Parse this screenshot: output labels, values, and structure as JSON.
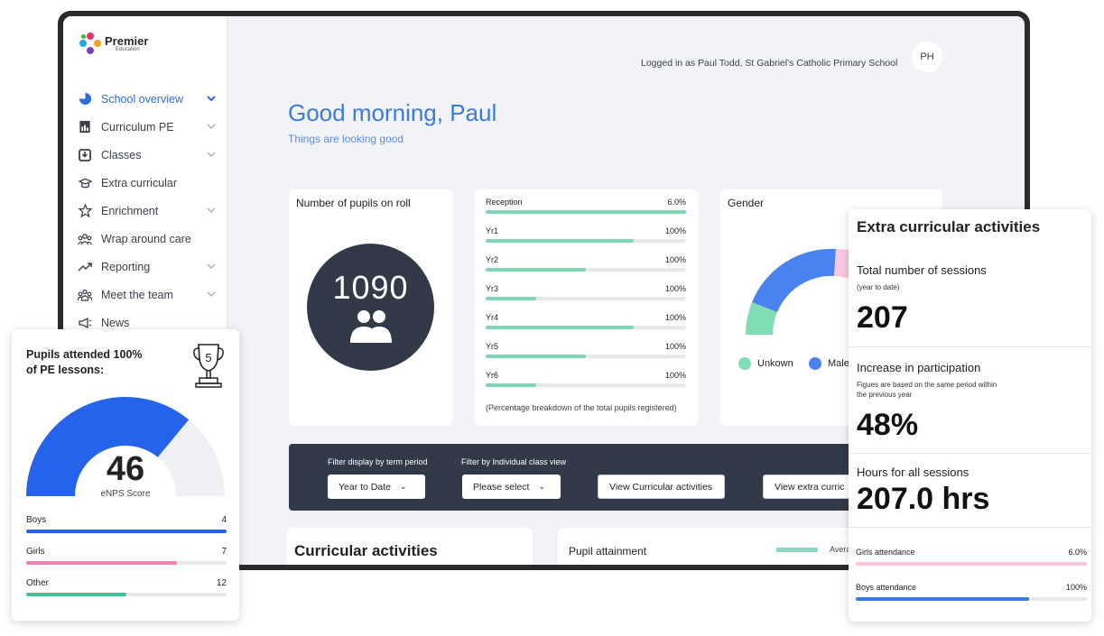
{
  "brand": {
    "name": "Premier",
    "sub": "Education"
  },
  "sidebar": {
    "items": [
      {
        "label": "School overview",
        "icon": "pie-chart-icon",
        "active": true,
        "chevron": true
      },
      {
        "label": "Curriculum PE",
        "icon": "document-chart-icon",
        "chevron": true
      },
      {
        "label": "Classes",
        "icon": "download-box-icon",
        "chevron": true
      },
      {
        "label": "Extra curricular",
        "icon": "graduation-cap-icon",
        "chevron": false
      },
      {
        "label": "Enrichment",
        "icon": "star-icon",
        "chevron": true
      },
      {
        "label": "Wrap around care",
        "icon": "people-group-icon",
        "chevron": false
      },
      {
        "label": "Reporting",
        "icon": "trend-up-icon",
        "chevron": true
      },
      {
        "label": "Meet the team",
        "icon": "team-icon",
        "chevron": true
      },
      {
        "label": "News",
        "icon": "megaphone-icon",
        "chevron": false
      }
    ]
  },
  "header": {
    "login_text": "Logged in as Paul Todd, St Gabriel's Catholic Primary School",
    "avatar_initials": "PH",
    "greeting": "Good morning, Paul",
    "subgreeting": "Things are looking good"
  },
  "roll": {
    "title": "Number of pupils on roll",
    "count": "1090"
  },
  "years": {
    "rows": [
      {
        "label": "Reception",
        "value": "6.0%",
        "fill": 1.0
      },
      {
        "label": "Yr1",
        "value": "100%",
        "fill": 0.74
      },
      {
        "label": "Yr2",
        "value": "100%",
        "fill": 0.5
      },
      {
        "label": "Yr3",
        "value": "100%",
        "fill": 0.25
      },
      {
        "label": "Yr4",
        "value": "100%",
        "fill": 0.74
      },
      {
        "label": "Yr5",
        "value": "100%",
        "fill": 0.5
      },
      {
        "label": "Yr6",
        "value": "100%",
        "fill": 0.25
      }
    ],
    "note": "(Percentage breakdown of the total pupils registered)"
  },
  "gender": {
    "title": "Gender",
    "legend": [
      {
        "label": "Unkown",
        "color": "#7fdcb5"
      },
      {
        "label": "Male",
        "color": "#4a82f0"
      }
    ]
  },
  "filters": {
    "term_label": "Filter display by term period",
    "term_value": "Year to Date",
    "class_label": "Filter by Individual class view",
    "class_value": "Please select",
    "btn_curricular": "View Curricular activities",
    "btn_extra": "View extra curric"
  },
  "curricular": {
    "title": "Curricular activities"
  },
  "attainment": {
    "title": "Pupil attainment",
    "legend": "Avera"
  },
  "pe": {
    "title_line1": "Pupils attended 100%",
    "title_line2": "of PE lessons:",
    "trophy_number": "5",
    "score": "46",
    "score_label": "eNPS Score",
    "gauge_fill": 0.8,
    "rows": [
      {
        "label": "Boys",
        "value": "4",
        "fill": 1.0,
        "color": "#2563eb"
      },
      {
        "label": "Girls",
        "value": "7",
        "fill": 0.75,
        "color": "#ec7fb0"
      },
      {
        "label": "Other",
        "value": "12",
        "fill": 0.5,
        "color": "#3ec28f"
      }
    ]
  },
  "extra": {
    "title": "Extra curricular activities",
    "sessions_label": "Total number of sessions",
    "sessions_sub": "(year to date)",
    "sessions_value": "207",
    "increase_label": "Increase in participation",
    "increase_sub_1": "Figues are based on the same period within",
    "increase_sub_2": "the previous year",
    "increase_value": "48%",
    "hours_label": "Hours for all sessions",
    "hours_value": "207.0 hrs",
    "rows": [
      {
        "label": "Girls attendance",
        "value": "6.0%",
        "fill": 1.0,
        "color": "#f7c6dd"
      },
      {
        "label": "Boys attendance",
        "value": "100%",
        "fill": 0.75,
        "color": "#3a7ae8"
      }
    ]
  }
}
